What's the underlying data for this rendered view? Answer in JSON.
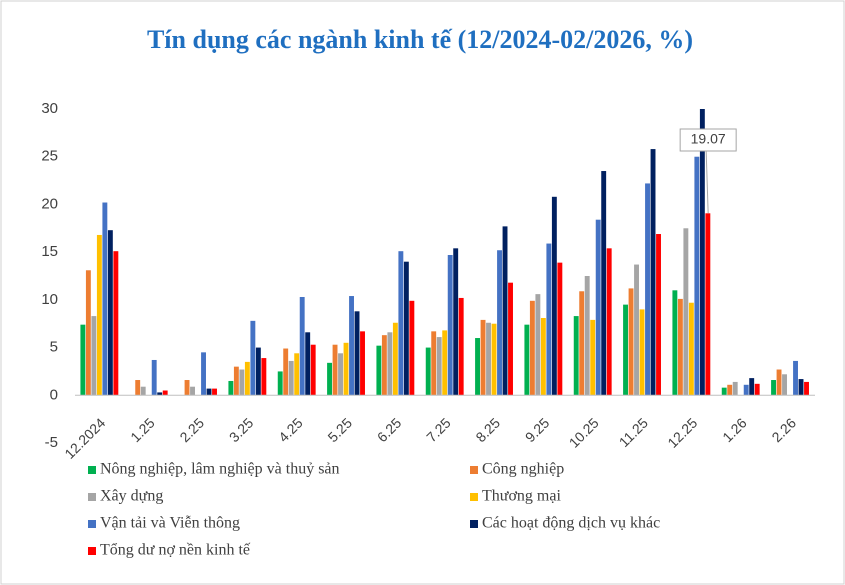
{
  "chart_data": {
    "type": "bar",
    "title": "Tín dụng các ngành kinh tế (12/2024-02/2026, %)",
    "categories": [
      "12.2024",
      "1.25",
      "2.25",
      "3.25",
      "4.25",
      "5.25",
      "6.25",
      "7.25",
      "8.25",
      "9.25",
      "10.25",
      "11.25",
      "12.25",
      "1.26",
      "2.26"
    ],
    "series": [
      {
        "name": "Nông nghiệp, lâm nghiệp và thuỷ sản",
        "color": "#00b050",
        "values": [
          7.4,
          0,
          0,
          1.5,
          2.5,
          3.4,
          5.2,
          5.0,
          6.0,
          7.4,
          8.3,
          9.5,
          11.0,
          0.8,
          1.6
        ]
      },
      {
        "name": "Công nghiệp",
        "color": "#ed7d31",
        "values": [
          13.1,
          1.6,
          1.6,
          3.0,
          4.9,
          5.3,
          6.3,
          6.7,
          7.9,
          9.9,
          10.9,
          11.2,
          10.1,
          1.1,
          2.7
        ]
      },
      {
        "name": "Xây dựng",
        "color": "#a5a5a5",
        "values": [
          8.3,
          0.9,
          0.9,
          2.7,
          3.6,
          4.4,
          6.6,
          6.1,
          7.6,
          10.6,
          12.5,
          13.7,
          17.5,
          1.4,
          2.2
        ]
      },
      {
        "name": "Thương mại",
        "color": "#ffc000",
        "values": [
          16.8,
          0,
          0,
          3.5,
          4.4,
          5.5,
          7.6,
          6.8,
          7.5,
          8.1,
          7.9,
          9.0,
          9.7,
          0,
          0
        ]
      },
      {
        "name": "Vận tải và Viễn thông",
        "color": "#4472c4",
        "values": [
          20.2,
          3.7,
          4.5,
          7.8,
          10.3,
          10.4,
          15.1,
          14.7,
          15.2,
          15.9,
          18.4,
          22.2,
          25.0,
          1.1,
          3.6
        ]
      },
      {
        "name": "Các hoạt động dịch vụ khác",
        "color": "#002060",
        "values": [
          17.3,
          0.3,
          0.7,
          5.0,
          6.6,
          8.8,
          14.0,
          15.4,
          17.7,
          20.8,
          23.5,
          25.8,
          32.0,
          1.8,
          1.7
        ]
      },
      {
        "name": "Tổng dư nợ nền kinh tế",
        "color": "#ff0000",
        "values": [
          15.1,
          0.5,
          0.7,
          3.9,
          5.3,
          6.7,
          9.9,
          10.2,
          11.8,
          13.9,
          15.4,
          16.9,
          19.07,
          1.2,
          1.4
        ],
        "value_labels": [
          null,
          null,
          null,
          null,
          null,
          null,
          null,
          null,
          null,
          null,
          null,
          null,
          "19.07",
          null,
          null
        ]
      }
    ],
    "ylim": [
      -5,
      30
    ],
    "yticks": [
      -5,
      0,
      5,
      10,
      15,
      20,
      25,
      30
    ],
    "grid": false
  }
}
